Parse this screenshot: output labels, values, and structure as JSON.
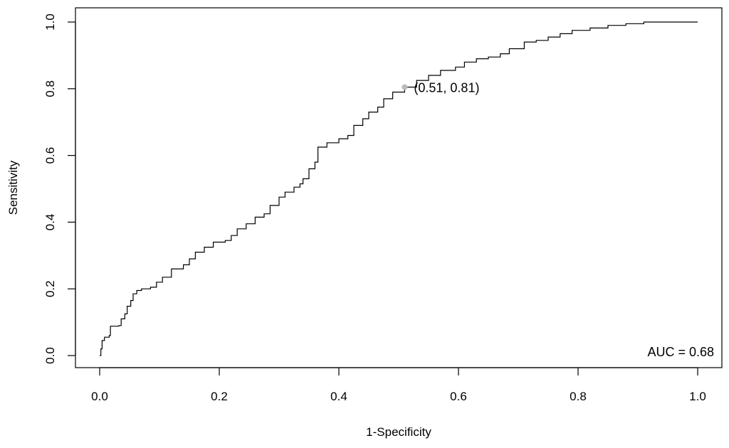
{
  "chart_data": {
    "type": "line",
    "xlabel": "1-Specificity",
    "ylabel": "Sensitivity",
    "xlim": [
      0.0,
      1.0
    ],
    "ylim": [
      0.0,
      1.0
    ],
    "x_ticks": [
      "0.0",
      "0.2",
      "0.4",
      "0.6",
      "0.8",
      "1.0"
    ],
    "y_ticks": [
      "0.0",
      "0.2",
      "0.4",
      "0.6",
      "0.8",
      "1.0"
    ],
    "grid": false,
    "series": [
      {
        "color": "#000000",
        "points": [
          [
            0.0,
            0.0
          ],
          [
            0.002,
            0.02
          ],
          [
            0.004,
            0.045
          ],
          [
            0.008,
            0.055
          ],
          [
            0.016,
            0.06
          ],
          [
            0.018,
            0.088
          ],
          [
            0.032,
            0.09
          ],
          [
            0.036,
            0.11
          ],
          [
            0.042,
            0.125
          ],
          [
            0.046,
            0.148
          ],
          [
            0.052,
            0.165
          ],
          [
            0.056,
            0.185
          ],
          [
            0.062,
            0.195
          ],
          [
            0.07,
            0.2
          ],
          [
            0.085,
            0.205
          ],
          [
            0.095,
            0.22
          ],
          [
            0.105,
            0.235
          ],
          [
            0.12,
            0.26
          ],
          [
            0.14,
            0.272
          ],
          [
            0.15,
            0.29
          ],
          [
            0.16,
            0.31
          ],
          [
            0.175,
            0.325
          ],
          [
            0.19,
            0.34
          ],
          [
            0.21,
            0.345
          ],
          [
            0.22,
            0.36
          ],
          [
            0.23,
            0.38
          ],
          [
            0.245,
            0.395
          ],
          [
            0.26,
            0.415
          ],
          [
            0.275,
            0.425
          ],
          [
            0.285,
            0.45
          ],
          [
            0.3,
            0.475
          ],
          [
            0.31,
            0.49
          ],
          [
            0.325,
            0.505
          ],
          [
            0.335,
            0.515
          ],
          [
            0.34,
            0.53
          ],
          [
            0.35,
            0.56
          ],
          [
            0.36,
            0.58
          ],
          [
            0.365,
            0.625
          ],
          [
            0.38,
            0.638
          ],
          [
            0.4,
            0.65
          ],
          [
            0.415,
            0.66
          ],
          [
            0.425,
            0.69
          ],
          [
            0.44,
            0.71
          ],
          [
            0.45,
            0.73
          ],
          [
            0.465,
            0.745
          ],
          [
            0.475,
            0.77
          ],
          [
            0.49,
            0.79
          ],
          [
            0.51,
            0.805
          ],
          [
            0.53,
            0.825
          ],
          [
            0.55,
            0.84
          ],
          [
            0.57,
            0.855
          ],
          [
            0.595,
            0.865
          ],
          [
            0.61,
            0.88
          ],
          [
            0.63,
            0.89
          ],
          [
            0.65,
            0.895
          ],
          [
            0.67,
            0.905
          ],
          [
            0.685,
            0.92
          ],
          [
            0.71,
            0.94
          ],
          [
            0.73,
            0.945
          ],
          [
            0.75,
            0.955
          ],
          [
            0.77,
            0.965
          ],
          [
            0.79,
            0.975
          ],
          [
            0.82,
            0.982
          ],
          [
            0.85,
            0.99
          ],
          [
            0.88,
            0.995
          ],
          [
            0.91,
            1.0
          ],
          [
            1.0,
            1.0
          ]
        ]
      }
    ],
    "highlight_point": {
      "x": 0.51,
      "y": 0.805,
      "label": "(0.51, 0.81)",
      "color": "#bbbbbb"
    },
    "annotation": "AUC = 0.68"
  }
}
